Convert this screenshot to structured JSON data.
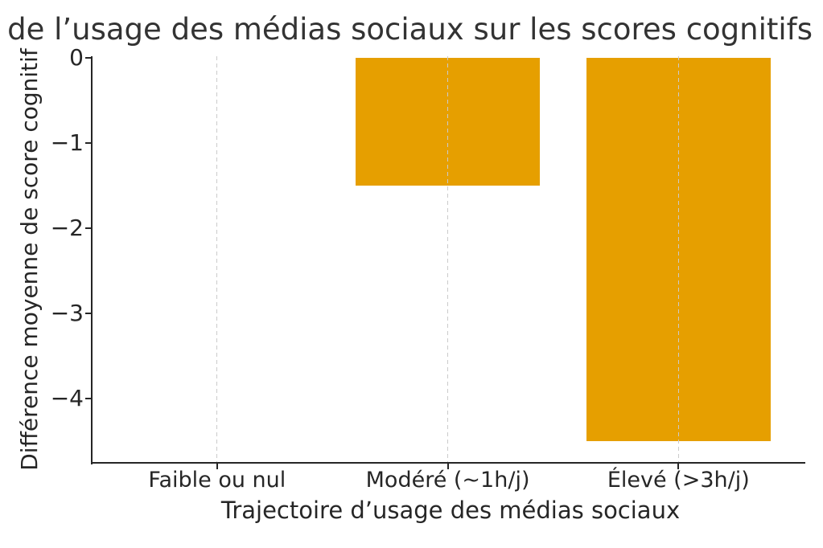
{
  "chart_data": {
    "type": "bar",
    "title": "de l’usage des médias sociaux sur les scores cognitifs",
    "title_note": "title clipped at left edge of image",
    "categories": [
      "Faible ou nul",
      "Modéré (~1h/j)",
      "Élevé (>3h/j)"
    ],
    "values": [
      0,
      -1.5,
      -4.5
    ],
    "xlabel": "Trajectoire d’usage des médias sociaux",
    "ylabel": "Différence moyenne de score cognitif",
    "ylim": [
      -4.75,
      0
    ],
    "xlim": [
      -0.54,
      2.55
    ],
    "yticks": [
      0,
      -1,
      -2,
      -3,
      -4
    ],
    "ytick_labels": [
      "0",
      "−1",
      "−2",
      "−3",
      "−4"
    ],
    "bar_width_fraction": 0.8,
    "bar_color": "#E69F00",
    "grid": {
      "axis": "x",
      "linestyle": "dashed",
      "color": "#cbcbcb",
      "drawn_over_bars": true
    },
    "legend": false,
    "background": "#ffffff"
  },
  "colors": {
    "bar": "#E69F00",
    "grid": "#cbcbcb",
    "spine": "#262626",
    "text": "#262626",
    "title": "#333333",
    "background": "#ffffff"
  }
}
